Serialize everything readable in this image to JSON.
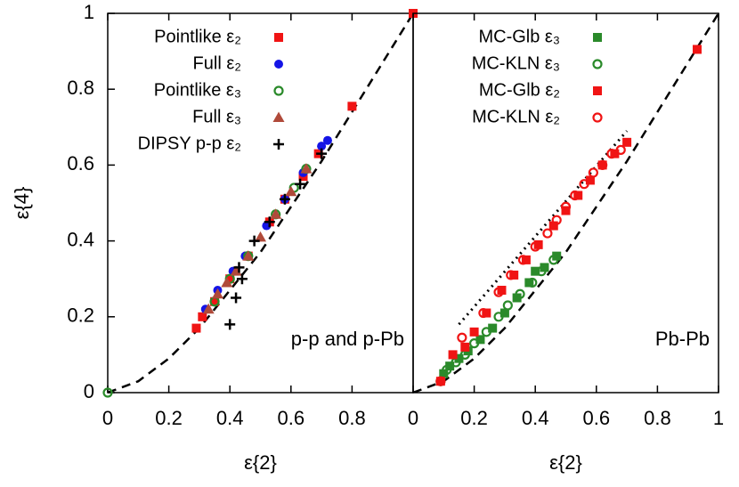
{
  "chart_data": [
    {
      "type": "scatter",
      "xlabel": "ε{2}",
      "ylabel": "ε{4}",
      "annotation": "p-p and p-Pb",
      "xlim": [
        0,
        1
      ],
      "ylim": [
        0,
        1
      ],
      "xticks": [
        0,
        0.2,
        0.4,
        0.6,
        0.8
      ],
      "yticks": [
        0,
        0.2,
        0.4,
        0.6,
        0.8,
        1
      ],
      "grid": false,
      "legend": "top-left",
      "curves": [
        {
          "style": "dashed",
          "color": "#000000",
          "x": [
            0,
            0.1,
            0.2,
            0.3,
            0.4,
            0.5,
            0.6,
            0.7,
            0.8,
            0.9,
            1
          ],
          "values": [
            0,
            0.03,
            0.09,
            0.17,
            0.27,
            0.37,
            0.49,
            0.61,
            0.74,
            0.87,
            1
          ]
        }
      ],
      "series": [
        {
          "name": "Pointlike ε₂",
          "color": "#f01414",
          "marker": "square",
          "x": [
            0.29,
            0.31,
            0.35,
            0.4,
            0.46,
            0.53,
            0.58,
            0.64,
            0.69,
            0.8,
            1.0
          ],
          "values": [
            0.17,
            0.2,
            0.24,
            0.3,
            0.36,
            0.45,
            0.51,
            0.57,
            0.63,
            0.755,
            1.0
          ]
        },
        {
          "name": "Full ε₂",
          "color": "#1414e6",
          "marker": "circle",
          "x": [
            0.32,
            0.36,
            0.41,
            0.45,
            0.52,
            0.58,
            0.64,
            0.7,
            0.72
          ],
          "values": [
            0.22,
            0.27,
            0.32,
            0.36,
            0.44,
            0.51,
            0.58,
            0.65,
            0.665
          ]
        },
        {
          "name": "Pointlike ε₃",
          "color": "#2a8a2a",
          "marker": "open-circle",
          "x": [
            0,
            0.35,
            0.4,
            0.46,
            0.55,
            0.61,
            0.65
          ],
          "values": [
            0,
            0.24,
            0.3,
            0.36,
            0.47,
            0.54,
            0.59
          ]
        },
        {
          "name": "Full ε₃",
          "color": "#b04a3a",
          "marker": "triangle",
          "x": [
            0.33,
            0.36,
            0.39,
            0.42,
            0.46,
            0.5,
            0.55,
            0.6,
            0.65
          ],
          "values": [
            0.22,
            0.26,
            0.29,
            0.32,
            0.36,
            0.41,
            0.47,
            0.53,
            0.59
          ]
        },
        {
          "name": "DIPSY p-p ε₂",
          "color": "#000000",
          "marker": "plus",
          "x": [
            0.4,
            0.42,
            0.44,
            0.43,
            0.48,
            0.53,
            0.58,
            0.63,
            0.7
          ],
          "values": [
            0.18,
            0.25,
            0.3,
            0.33,
            0.4,
            0.45,
            0.51,
            0.55,
            0.63
          ]
        }
      ]
    },
    {
      "type": "scatter",
      "xlabel": "ε{2}",
      "annotation": "Pb-Pb",
      "xlim": [
        0,
        1
      ],
      "ylim": [
        0,
        1
      ],
      "xticks": [
        0,
        0.2,
        0.4,
        0.6,
        0.8,
        1
      ],
      "grid": false,
      "legend": "top-left",
      "curves": [
        {
          "style": "dashed",
          "color": "#000000",
          "x": [
            0,
            0.1,
            0.2,
            0.3,
            0.4,
            0.5,
            0.6,
            0.7,
            0.8,
            0.9,
            1
          ],
          "values": [
            0,
            0.03,
            0.09,
            0.17,
            0.27,
            0.37,
            0.49,
            0.61,
            0.74,
            0.87,
            1
          ]
        },
        {
          "style": "dotted",
          "color": "#000000",
          "x": [
            0.15,
            0.7
          ],
          "values": [
            0.18,
            0.69
          ]
        }
      ],
      "series": [
        {
          "name": "MC-Glb ε₃",
          "color": "#2a8a2a",
          "marker": "square",
          "x": [
            0.1,
            0.12,
            0.15,
            0.18,
            0.22,
            0.26,
            0.3,
            0.34,
            0.38,
            0.4,
            0.43,
            0.47
          ],
          "values": [
            0.05,
            0.07,
            0.09,
            0.11,
            0.14,
            0.17,
            0.21,
            0.25,
            0.29,
            0.32,
            0.33,
            0.36
          ]
        },
        {
          "name": "MC-KLN ε₃",
          "color": "#2a8a2a",
          "marker": "open-circle",
          "x": [
            0.09,
            0.11,
            0.14,
            0.17,
            0.2,
            0.24,
            0.28,
            0.31,
            0.35,
            0.39,
            0.42,
            0.46
          ],
          "values": [
            0.03,
            0.06,
            0.08,
            0.1,
            0.13,
            0.16,
            0.2,
            0.23,
            0.26,
            0.29,
            0.32,
            0.35
          ]
        },
        {
          "name": "MC-Glb ε₂",
          "color": "#f01414",
          "marker": "square",
          "x": [
            0.09,
            0.13,
            0.17,
            0.2,
            0.24,
            0.29,
            0.33,
            0.37,
            0.41,
            0.46,
            0.5,
            0.54,
            0.58,
            0.62,
            0.66,
            0.7,
            0.93
          ],
          "values": [
            0.03,
            0.1,
            0.12,
            0.16,
            0.21,
            0.27,
            0.31,
            0.35,
            0.39,
            0.44,
            0.48,
            0.52,
            0.56,
            0.6,
            0.63,
            0.66,
            0.905
          ]
        },
        {
          "name": "MC-KLN ε₂",
          "color": "#f01414",
          "marker": "open-circle",
          "x": [
            0.09,
            0.16,
            0.23,
            0.28,
            0.32,
            0.36,
            0.4,
            0.44,
            0.47,
            0.5,
            0.53,
            0.56,
            0.59,
            0.62,
            0.65,
            0.68
          ],
          "values": [
            0.03,
            0.145,
            0.21,
            0.265,
            0.31,
            0.35,
            0.385,
            0.42,
            0.455,
            0.49,
            0.52,
            0.55,
            0.58,
            0.6,
            0.63,
            0.64
          ]
        }
      ]
    }
  ]
}
